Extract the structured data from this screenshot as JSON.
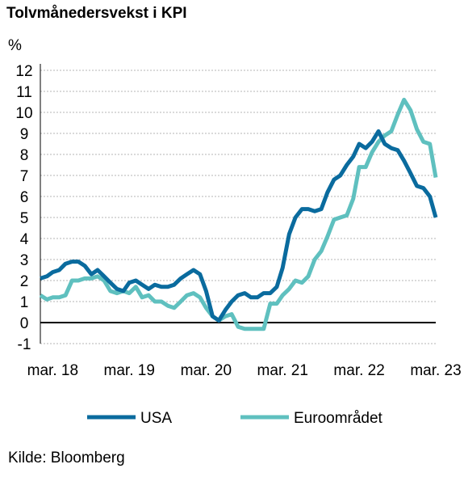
{
  "source": "Kilde: Bloomberg",
  "chart_data": {
    "type": "line",
    "title": "Tolvmånedersvekst i KPI",
    "ylabel": "%",
    "xlabel": "",
    "ylim": [
      -1,
      12
    ],
    "yticks": [
      "-1",
      "0",
      "1",
      "2",
      "3",
      "4",
      "5",
      "6",
      "7",
      "8",
      "9",
      "10",
      "11",
      "12"
    ],
    "xticks": [
      {
        "label": "mar. 18",
        "x": "2018-03"
      },
      {
        "label": "mar. 19",
        "x": "2019-03"
      },
      {
        "label": "mar. 20",
        "x": "2020-03"
      },
      {
        "label": "mar. 21",
        "x": "2021-03"
      },
      {
        "label": "mar. 22",
        "x": "2022-03"
      },
      {
        "label": "mar. 23",
        "x": "2023-03"
      }
    ],
    "grid": "horizontal dotted",
    "legend": "bottom",
    "series": [
      {
        "name": "USA",
        "color": "#0a6b9e",
        "x": [
          "2018-01",
          "2018-02",
          "2018-03",
          "2018-04",
          "2018-05",
          "2018-06",
          "2018-07",
          "2018-08",
          "2018-09",
          "2018-10",
          "2018-11",
          "2018-12",
          "2019-01",
          "2019-02",
          "2019-03",
          "2019-04",
          "2019-05",
          "2019-06",
          "2019-07",
          "2019-08",
          "2019-09",
          "2019-10",
          "2019-11",
          "2019-12",
          "2020-01",
          "2020-02",
          "2020-03",
          "2020-04",
          "2020-05",
          "2020-06",
          "2020-07",
          "2020-08",
          "2020-09",
          "2020-10",
          "2020-11",
          "2020-12",
          "2021-01",
          "2021-02",
          "2021-03",
          "2021-04",
          "2021-05",
          "2021-06",
          "2021-07",
          "2021-08",
          "2021-09",
          "2021-10",
          "2021-11",
          "2021-12",
          "2022-01",
          "2022-02",
          "2022-03",
          "2022-04",
          "2022-05",
          "2022-06",
          "2022-07",
          "2022-08",
          "2022-09",
          "2022-10",
          "2022-11",
          "2022-12",
          "2023-01",
          "2023-02",
          "2023-03"
        ],
        "values": [
          2.1,
          2.2,
          2.4,
          2.5,
          2.8,
          2.9,
          2.9,
          2.7,
          2.3,
          2.5,
          2.2,
          1.9,
          1.6,
          1.5,
          1.9,
          2.0,
          1.8,
          1.6,
          1.8,
          1.7,
          1.7,
          1.8,
          2.1,
          2.3,
          2.5,
          2.3,
          1.5,
          0.3,
          0.1,
          0.6,
          1.0,
          1.3,
          1.4,
          1.2,
          1.2,
          1.4,
          1.4,
          1.7,
          2.6,
          4.2,
          5.0,
          5.4,
          5.4,
          5.3,
          5.4,
          6.2,
          6.8,
          7.0,
          7.5,
          7.9,
          8.5,
          8.3,
          8.6,
          9.1,
          8.5,
          8.3,
          8.2,
          7.7,
          7.1,
          6.5,
          6.4,
          6.0,
          5.0
        ]
      },
      {
        "name": "Euroområdet",
        "color": "#5fc0bf",
        "x": [
          "2018-01",
          "2018-02",
          "2018-03",
          "2018-04",
          "2018-05",
          "2018-06",
          "2018-07",
          "2018-08",
          "2018-09",
          "2018-10",
          "2018-11",
          "2018-12",
          "2019-01",
          "2019-02",
          "2019-03",
          "2019-04",
          "2019-05",
          "2019-06",
          "2019-07",
          "2019-08",
          "2019-09",
          "2019-10",
          "2019-11",
          "2019-12",
          "2020-01",
          "2020-02",
          "2020-03",
          "2020-04",
          "2020-05",
          "2020-06",
          "2020-07",
          "2020-08",
          "2020-09",
          "2020-10",
          "2020-11",
          "2020-12",
          "2021-01",
          "2021-02",
          "2021-03",
          "2021-04",
          "2021-05",
          "2021-06",
          "2021-07",
          "2021-08",
          "2021-09",
          "2021-10",
          "2021-11",
          "2021-12",
          "2022-01",
          "2022-02",
          "2022-03",
          "2022-04",
          "2022-05",
          "2022-06",
          "2022-07",
          "2022-08",
          "2022-09",
          "2022-10",
          "2022-11",
          "2022-12",
          "2023-01",
          "2023-02",
          "2023-03"
        ],
        "values": [
          1.3,
          1.1,
          1.2,
          1.2,
          1.3,
          2.0,
          2.0,
          2.1,
          2.1,
          2.2,
          2.0,
          1.5,
          1.4,
          1.5,
          1.4,
          1.7,
          1.2,
          1.3,
          1.0,
          1.0,
          0.8,
          0.7,
          1.0,
          1.3,
          1.4,
          1.2,
          0.7,
          0.3,
          0.1,
          0.3,
          0.4,
          -0.2,
          -0.3,
          -0.3,
          -0.3,
          -0.3,
          0.9,
          0.9,
          1.3,
          1.6,
          2.0,
          1.9,
          2.2,
          3.0,
          3.4,
          4.1,
          4.9,
          5.0,
          5.1,
          5.9,
          7.4,
          7.4,
          8.1,
          8.6,
          8.9,
          9.1,
          9.9,
          10.6,
          10.1,
          9.2,
          8.6,
          8.5,
          6.9
        ]
      }
    ]
  }
}
